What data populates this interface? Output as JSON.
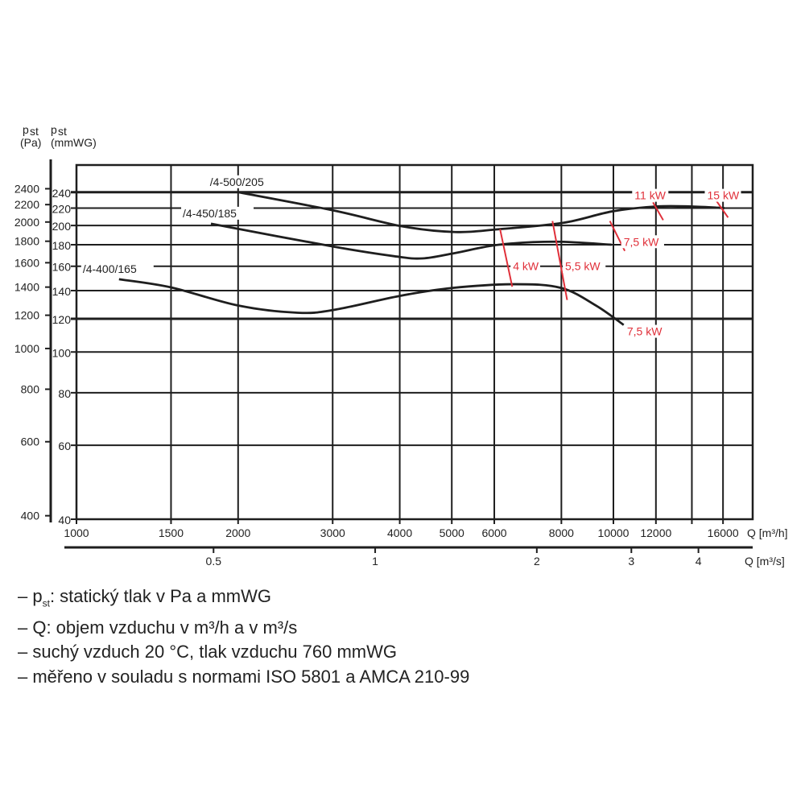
{
  "chart_data": {
    "type": "line",
    "title": "",
    "y_axis_pa": {
      "label": "p",
      "label_sub": "st",
      "unit": "(Pa)",
      "ticks": [
        2400,
        2200,
        2000,
        1800,
        1600,
        1400,
        1200,
        1000,
        800,
        600,
        400
      ]
    },
    "y_axis_mmwg": {
      "label": "p",
      "label_sub": "st",
      "unit": "(mmWG)",
      "ticks": [
        240,
        220,
        200,
        180,
        160,
        140,
        120,
        100,
        80,
        60,
        40
      ],
      "scale": "log",
      "range": [
        40,
        278
      ]
    },
    "x_axis_m3h": {
      "label": "Q [m³/h]",
      "ticks": [
        1000,
        1500,
        2000,
        3000,
        4000,
        5000,
        6000,
        8000,
        10000,
        12000,
        16000
      ],
      "grid": [
        1000,
        1500,
        2000,
        3000,
        4000,
        5000,
        6000,
        8000,
        10000,
        12000,
        14000,
        16000
      ],
      "scale": "log",
      "range": [
        1000,
        18170
      ]
    },
    "x_axis_m3s": {
      "label": "Q [m³/s]",
      "ticks": [
        0.5,
        1,
        2,
        3,
        4
      ],
      "tick_labels": [
        "0.5",
        "1",
        "2",
        "3",
        "4"
      ]
    },
    "series": [
      {
        "name": "/4-500/205",
        "x": [
          2000,
          3020,
          4050,
          5070,
          6120,
          8070,
          9930,
          12000,
          14000,
          16100
        ],
        "y": [
          240,
          217,
          199,
          193,
          196,
          203,
          216,
          222,
          222,
          220
        ]
      },
      {
        "name": "/4-450/185",
        "x": [
          1780,
          3020,
          3910,
          4410,
          5070,
          6120,
          7800,
          9930
        ],
        "y": [
          202,
          178,
          169,
          167,
          172,
          180,
          183,
          180
        ]
      },
      {
        "name": "/4-400/165",
        "x": [
          1200,
          1500,
          2000,
          2580,
          3020,
          4000,
          5000,
          6560,
          8000,
          9280,
          10450
        ],
        "y": [
          149,
          142.5,
          129,
          124,
          126,
          136,
          142,
          145,
          142,
          129,
          116
        ]
      }
    ],
    "motor_marks": [
      {
        "label": "4 kW",
        "from": [
          6150,
          196
        ],
        "to": [
          6480,
          143
        ],
        "label_at": [
          6500,
          160
        ]
      },
      {
        "label": "5,5 kW",
        "from": [
          7700,
          205
        ],
        "to": [
          8200,
          133
        ],
        "label_at": [
          8130,
          160
        ]
      },
      {
        "label": "7,5 kW",
        "from": [
          9850,
          205
        ],
        "to": [
          10500,
          174
        ],
        "label_at": [
          10450,
          183
        ]
      },
      {
        "label": "11 kW",
        "from": [
          11850,
          227
        ],
        "to": [
          12380,
          206
        ],
        "label_at": [
          10950,
          236
        ]
      },
      {
        "label": "15 kW",
        "from": [
          15550,
          229
        ],
        "to": [
          16350,
          209
        ],
        "label_at": [
          14950,
          236
        ]
      },
      {
        "label": "7,5 kW",
        "from": [
          10450,
          116
        ],
        "to": [
          10450,
          116
        ],
        "label_at": [
          10600,
          112
        ]
      }
    ]
  },
  "notes": [
    {
      "pre": "– p",
      "sub": "st",
      "post": ": statický tlak v Pa a mmWG"
    },
    {
      "pre": "– Q: objem vzduchu v m³/h a v m³/s",
      "sub": "",
      "post": ""
    },
    {
      "pre": "– suchý vzduch 20 °C, tlak vzduchu 760 mmWG",
      "sub": "",
      "post": ""
    },
    {
      "pre": "– měřeno v souladu s normami ISO 5801 a AMCA 210-99",
      "sub": "",
      "post": ""
    }
  ],
  "colors": {
    "line": "#1e1e1e",
    "motor": "#e0303a"
  }
}
